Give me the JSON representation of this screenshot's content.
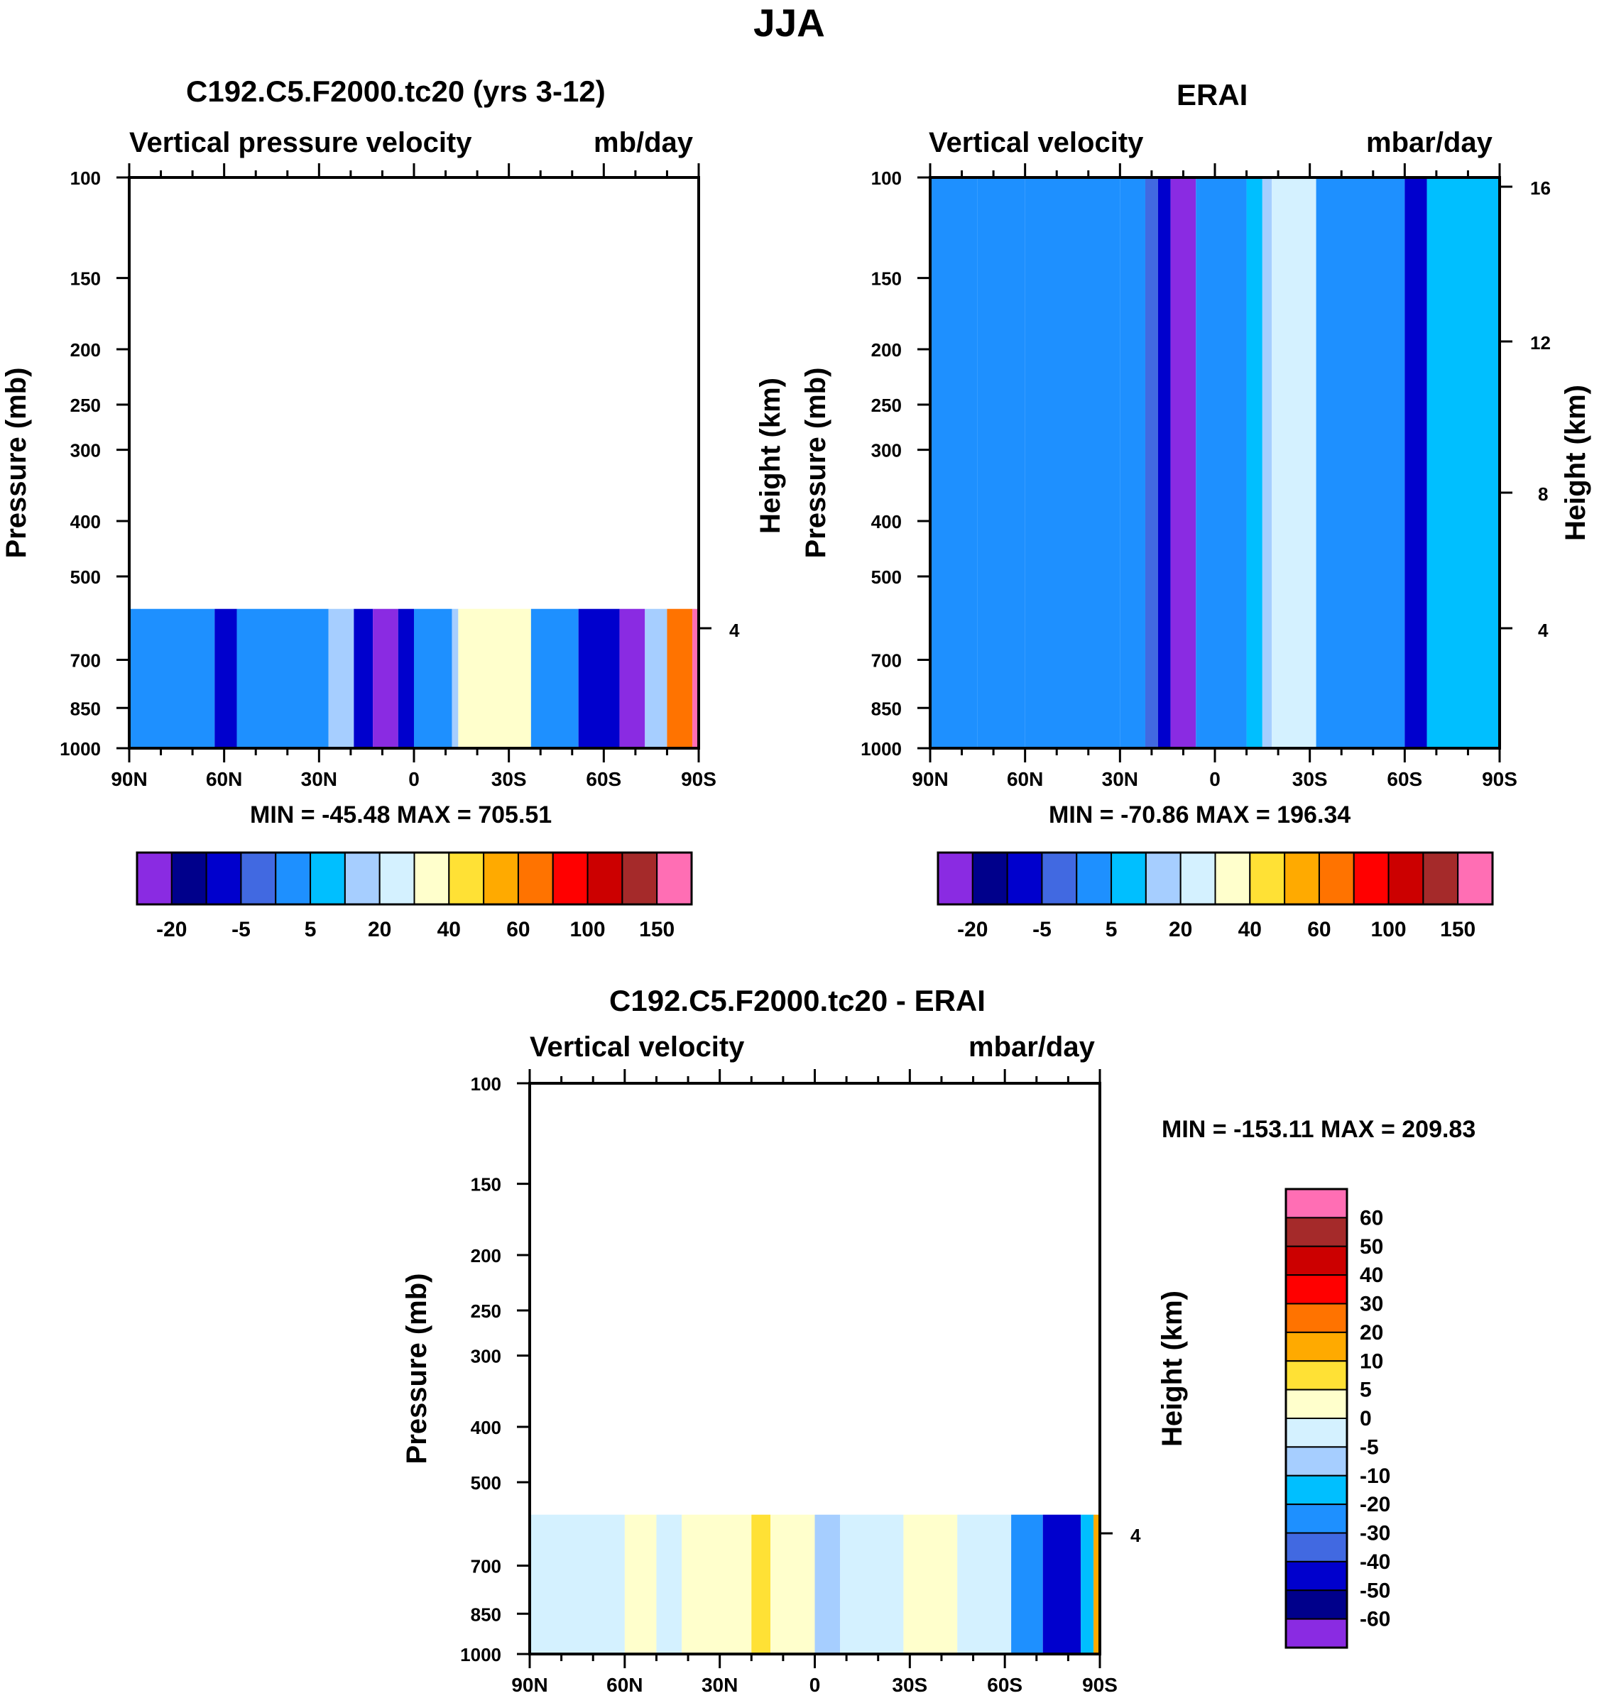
{
  "figure": {
    "title": "JJA"
  },
  "colors": {
    "full": [
      "#8A2BE2",
      "#00008B",
      "#0000CD",
      "#4169E1",
      "#1E90FF",
      "#00BFFF",
      "#A6CEFF",
      "#D4F1FF",
      "#FFFFCC",
      "#FFE135",
      "#FFAA00",
      "#FF7300",
      "#FF0000",
      "#CC0000",
      "#A52A2A",
      "#FF6EB4"
    ],
    "diff": [
      "#8A2BE2",
      "#00008B",
      "#0000CD",
      "#4169E1",
      "#1E90FF",
      "#00BFFF",
      "#A6CEFF",
      "#D4F1FF",
      "#FFFFCC",
      "#FFE135",
      "#FFAA00",
      "#FF7300",
      "#FF0000",
      "#CC0000",
      "#A52A2A",
      "#FF6EB4"
    ]
  },
  "panels": {
    "model": {
      "title": "C192.C5.F2000.tc20 (yrs 3-12)",
      "left_string": "Vertical pressure velocity",
      "right_string": "mb/day",
      "ylabel": "Pressure (mb)",
      "stats": "MIN = -45.48  MAX = 705.51",
      "height_tick": "4"
    },
    "erai": {
      "title": "ERAI",
      "left_string": "Vertical velocity",
      "right_string": "mbar/day",
      "ylabel": "Pressure (mb)",
      "ylabel_right": "Height (km)",
      "stats": "MIN = -70.86  MAX = 196.34",
      "height_ticks": [
        "16",
        "12",
        "8",
        "4"
      ]
    },
    "diff": {
      "title": "C192.C5.F2000.tc20 - ERAI",
      "left_string": "Vertical velocity",
      "right_string": "mbar/day",
      "ylabel": "Pressure (mb)",
      "ylabel_right": "Height (km)",
      "stats": "MIN = -153.11  MAX = 209.83",
      "height_tick": "4"
    }
  },
  "colorbars": {
    "full_labels": [
      "-20",
      "-5",
      "5",
      "20",
      "40",
      "60",
      "100",
      "150"
    ],
    "diff_labels": [
      "60",
      "50",
      "40",
      "30",
      "20",
      "10",
      "5",
      "0",
      "-5",
      "-10",
      "-20",
      "-30",
      "-40",
      "-50",
      "-60"
    ]
  },
  "chart_data": [
    {
      "type": "heatmap",
      "panel": "model",
      "title": "C192.C5.F2000.tc20 (yrs 3-12)",
      "subtitle_left": "Vertical pressure velocity",
      "subtitle_right": "mb/day",
      "xlabel": "",
      "ylabel": "Pressure (mb)",
      "x_ticks": [
        "90N",
        "60N",
        "30N",
        "0",
        "30S",
        "60S",
        "90S"
      ],
      "x_values": [
        90,
        60,
        30,
        0,
        -30,
        -60,
        -90
      ],
      "y_ticks": [
        "100",
        "150",
        "200",
        "250",
        "300",
        "400",
        "500",
        "700",
        "850",
        "1000"
      ],
      "y_values": [
        100,
        150,
        200,
        250,
        300,
        400,
        500,
        700,
        850,
        1000
      ],
      "ylim": [
        1000,
        100
      ],
      "y_scale": "log",
      "data_top_pressure": 570,
      "levels": [
        -20,
        -10,
        -5,
        0,
        5,
        10,
        20,
        30,
        40,
        50,
        60,
        80,
        100,
        120,
        150
      ],
      "min": -45.48,
      "max": 705.51,
      "columns": [
        {
          "lat_from": 90,
          "lat_to": 63,
          "value": 3
        },
        {
          "lat_from": 63,
          "lat_to": 56,
          "value": -10
        },
        {
          "lat_from": 56,
          "lat_to": 27,
          "value": 3
        },
        {
          "lat_from": 27,
          "lat_to": 19,
          "value": 15
        },
        {
          "lat_from": 19,
          "lat_to": 13,
          "value": -10
        },
        {
          "lat_from": 13,
          "lat_to": 5,
          "value": -30
        },
        {
          "lat_from": 5,
          "lat_to": 0,
          "value": -10
        },
        {
          "lat_from": 0,
          "lat_to": -12,
          "value": 3
        },
        {
          "lat_from": -12,
          "lat_to": -14,
          "value": 15
        },
        {
          "lat_from": -14,
          "lat_to": -37,
          "value": 30
        },
        {
          "lat_from": -37,
          "lat_to": -52,
          "value": 3
        },
        {
          "lat_from": -52,
          "lat_to": -65,
          "value": -10
        },
        {
          "lat_from": -65,
          "lat_to": -73,
          "value": -30
        },
        {
          "lat_from": -73,
          "lat_to": -80,
          "value": 15
        },
        {
          "lat_from": -80,
          "lat_to": -88,
          "value": 60
        },
        {
          "lat_from": -88,
          "lat_to": -90,
          "value": 200
        }
      ]
    },
    {
      "type": "heatmap",
      "panel": "erai",
      "title": "ERAI",
      "subtitle_left": "Vertical velocity",
      "subtitle_right": "mbar/day",
      "xlabel": "",
      "ylabel": "Pressure (mb)",
      "ylabel_right": "Height (km)",
      "x_ticks": [
        "90N",
        "60N",
        "30N",
        "0",
        "30S",
        "60S",
        "90S"
      ],
      "x_values": [
        90,
        60,
        30,
        0,
        -30,
        -60,
        -90
      ],
      "y_ticks": [
        "100",
        "150",
        "200",
        "250",
        "300",
        "400",
        "500",
        "700",
        "850",
        "1000"
      ],
      "y_values": [
        100,
        150,
        200,
        250,
        300,
        400,
        500,
        700,
        850,
        1000
      ],
      "ylim": [
        1000,
        100
      ],
      "y_scale": "log",
      "height_axis_km": [
        16,
        12,
        8,
        4
      ],
      "levels": [
        -20,
        -10,
        -5,
        0,
        5,
        10,
        20,
        30,
        40,
        50,
        60,
        80,
        100,
        120,
        150
      ],
      "min": -70.86,
      "max": 196.34,
      "columns": [
        {
          "lat_from": 90,
          "lat_to": 75,
          "value": 3
        },
        {
          "lat_from": 75,
          "lat_to": 60,
          "value": 0
        },
        {
          "lat_from": 60,
          "lat_to": 30,
          "value": 3
        },
        {
          "lat_from": 30,
          "lat_to": 22,
          "value": 0
        },
        {
          "lat_from": 22,
          "lat_to": 18,
          "value": -5
        },
        {
          "lat_from": 18,
          "lat_to": 14,
          "value": -10
        },
        {
          "lat_from": 14,
          "lat_to": 6,
          "value": -30
        },
        {
          "lat_from": 6,
          "lat_to": 0,
          "value": 0
        },
        {
          "lat_from": 0,
          "lat_to": -10,
          "value": 3
        },
        {
          "lat_from": -10,
          "lat_to": -15,
          "value": 8
        },
        {
          "lat_from": -15,
          "lat_to": -18,
          "value": 15
        },
        {
          "lat_from": -18,
          "lat_to": -32,
          "value": 25
        },
        {
          "lat_from": -32,
          "lat_to": -45,
          "value": 3
        },
        {
          "lat_from": -45,
          "lat_to": -60,
          "value": 0
        },
        {
          "lat_from": -60,
          "lat_to": -67,
          "value": -10
        },
        {
          "lat_from": -67,
          "lat_to": -90,
          "value": 8
        }
      ]
    },
    {
      "type": "heatmap",
      "panel": "diff",
      "title": "C192.C5.F2000.tc20 - ERAI",
      "subtitle_left": "Vertical velocity",
      "subtitle_right": "mbar/day",
      "xlabel": "",
      "ylabel": "Pressure (mb)",
      "ylabel_right": "Height (km)",
      "x_ticks": [
        "90N",
        "60N",
        "30N",
        "0",
        "30S",
        "60S",
        "90S"
      ],
      "x_values": [
        90,
        60,
        30,
        0,
        -30,
        -60,
        -90
      ],
      "y_ticks": [
        "100",
        "150",
        "200",
        "250",
        "300",
        "400",
        "500",
        "700",
        "850",
        "1000"
      ],
      "y_values": [
        100,
        150,
        200,
        250,
        300,
        400,
        500,
        700,
        850,
        1000
      ],
      "ylim": [
        1000,
        100
      ],
      "y_scale": "log",
      "data_top_pressure": 570,
      "levels": [
        -60,
        -50,
        -40,
        -30,
        -20,
        -10,
        -5,
        0,
        5,
        10,
        20,
        30,
        40,
        50,
        60
      ],
      "min": -153.11,
      "max": 209.83,
      "columns": [
        {
          "lat_from": 90,
          "lat_to": 60,
          "value": -2
        },
        {
          "lat_from": 60,
          "lat_to": 50,
          "value": 2
        },
        {
          "lat_from": 50,
          "lat_to": 42,
          "value": -2
        },
        {
          "lat_from": 42,
          "lat_to": 20,
          "value": 2
        },
        {
          "lat_from": 20,
          "lat_to": 14,
          "value": 7
        },
        {
          "lat_from": 14,
          "lat_to": 0,
          "value": 2
        },
        {
          "lat_from": 0,
          "lat_to": -8,
          "value": -7
        },
        {
          "lat_from": -8,
          "lat_to": -28,
          "value": -2
        },
        {
          "lat_from": -28,
          "lat_to": -45,
          "value": 2
        },
        {
          "lat_from": -45,
          "lat_to": -62,
          "value": -2
        },
        {
          "lat_from": -62,
          "lat_to": -72,
          "value": -25
        },
        {
          "lat_from": -72,
          "lat_to": -84,
          "value": -45
        },
        {
          "lat_from": -84,
          "lat_to": -88,
          "value": -15
        },
        {
          "lat_from": -88,
          "lat_to": -90,
          "value": 15
        }
      ]
    }
  ]
}
